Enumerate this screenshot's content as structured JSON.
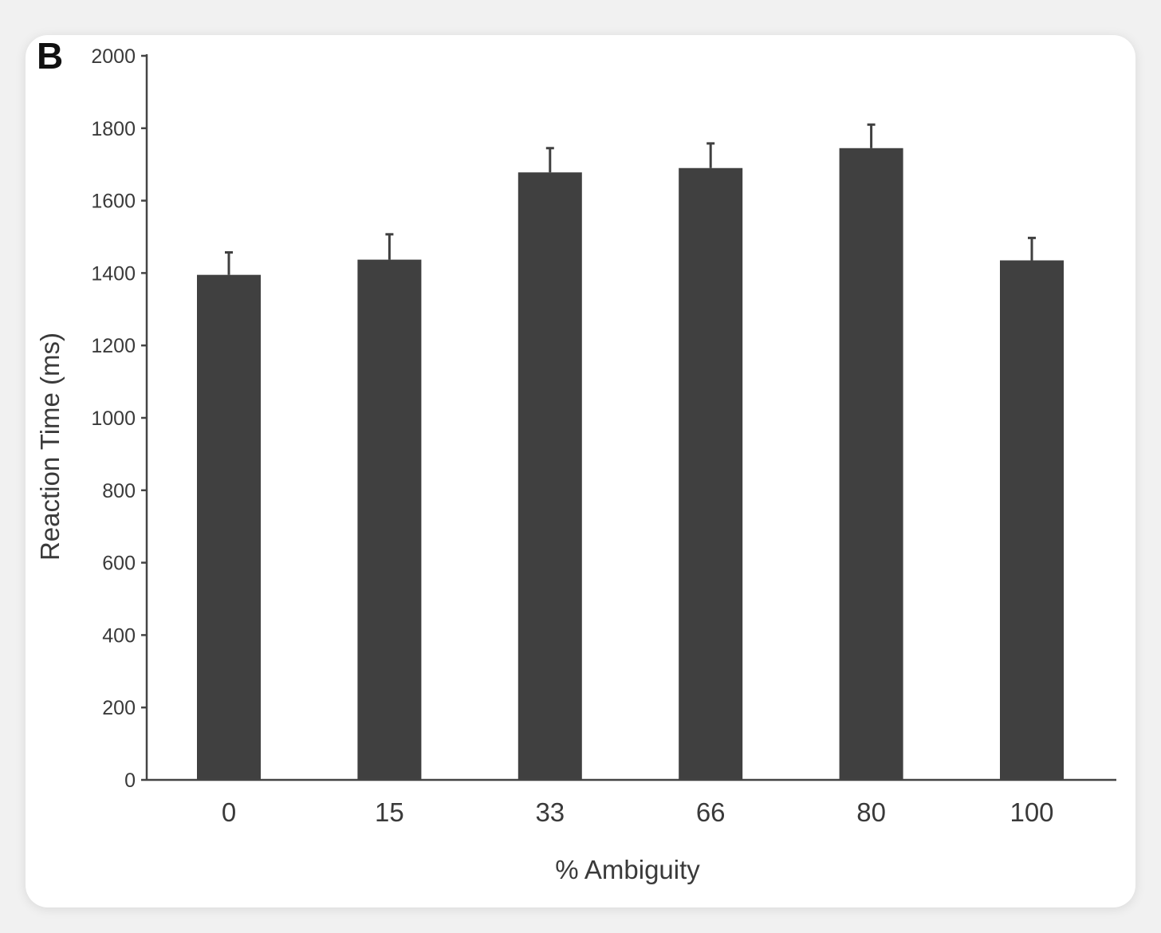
{
  "panel_label": "B",
  "chart_data": {
    "type": "bar",
    "title": "",
    "xlabel": "% Ambiguity",
    "ylabel": "Reaction Time (ms)",
    "categories": [
      "0",
      "15",
      "33",
      "66",
      "80",
      "100"
    ],
    "values": [
      1395,
      1437,
      1678,
      1690,
      1745,
      1435
    ],
    "error_upper": [
      1457,
      1507,
      1745,
      1758,
      1810,
      1497
    ],
    "ylim": [
      0,
      2000
    ],
    "yticks": [
      0,
      200,
      400,
      600,
      800,
      1000,
      1200,
      1400,
      1600,
      1800,
      2000
    ],
    "bar_color": "#404040",
    "grid": false,
    "legend": "none"
  }
}
